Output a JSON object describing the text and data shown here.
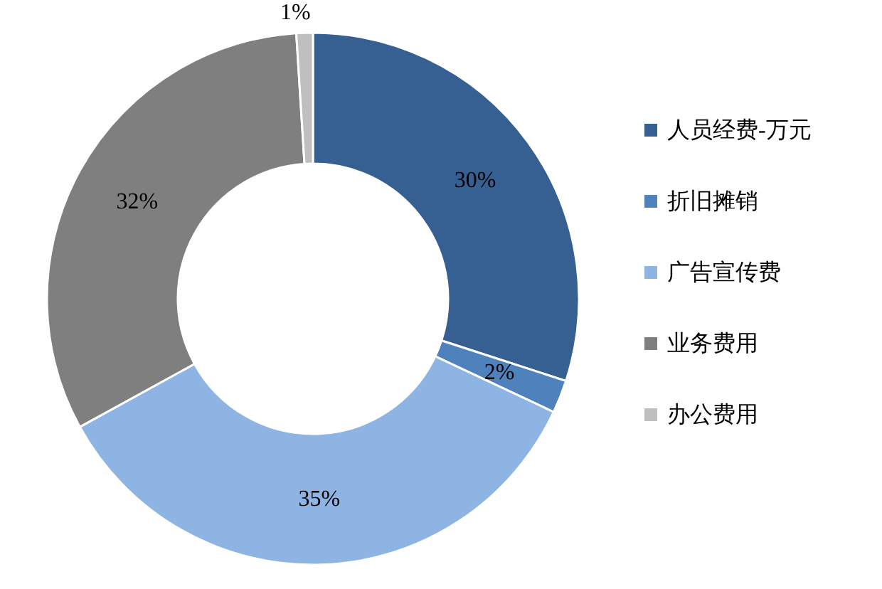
{
  "chart_data": {
    "type": "donut",
    "categories": [
      "人员经费-万元",
      "折旧摊销",
      "广告宣传费",
      "业务费用",
      "办公费用"
    ],
    "values": [
      30,
      2,
      35,
      32,
      1
    ],
    "colors": [
      "#376092",
      "#4f81bd",
      "#8db4e2",
      "#7f7f7f",
      "#bfbfbf"
    ],
    "value_labels": [
      "30%",
      "2%",
      "35%",
      "32%",
      "1%"
    ],
    "legend": "right"
  }
}
